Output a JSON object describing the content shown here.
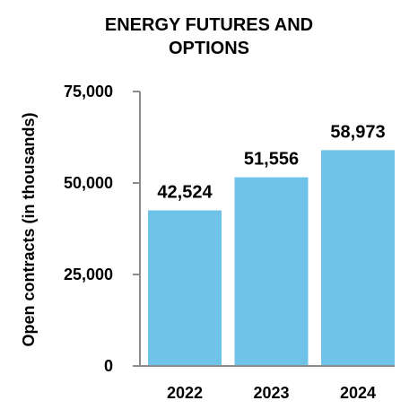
{
  "chart_data": {
    "type": "bar",
    "title_lines": [
      "ENERGY FUTURES AND",
      "OPTIONS"
    ],
    "ylabel": "Open contracts (in thousands)",
    "xlabel": "",
    "categories": [
      "2022",
      "2023",
      "2024"
    ],
    "values": [
      42524,
      51556,
      58973
    ],
    "data_labels": [
      "42,524",
      "51,556",
      "58,973"
    ],
    "ylim": [
      0,
      75000
    ],
    "y_ticks": [
      0,
      25000,
      50000,
      75000
    ],
    "y_tick_labels": [
      "0",
      "25,000",
      "50,000",
      "75,000"
    ],
    "grid": false,
    "legend": "none",
    "bar_color": "#70C3E8",
    "axis_color": "#8c8c8c"
  }
}
